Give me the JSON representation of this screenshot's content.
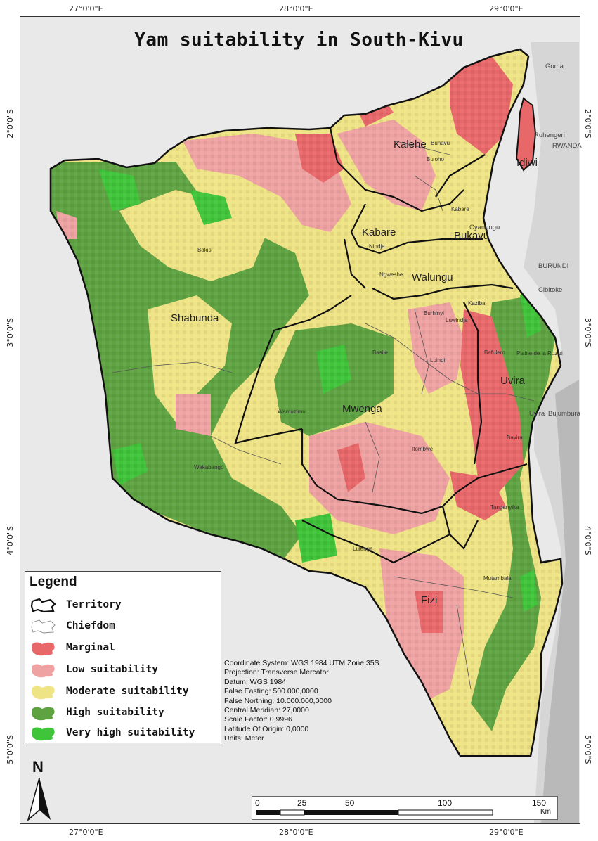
{
  "map": {
    "title": "Yam suitability in South-Kivu",
    "colors": {
      "marginal": "#e8686a",
      "low": "#efa2a2",
      "moderate": "#eee385",
      "high": "#5ea242",
      "very_high": "#3fc43a",
      "background": "#e9e9e9",
      "lake": "#b9b9b9",
      "border": "#111111"
    },
    "graticule": {
      "top": [
        "27°0'0\"E",
        "28°0'0\"E",
        "29°0'0\"E"
      ],
      "bottom": [
        "27°0'0\"E",
        "28°0'0\"E",
        "29°0'0\"E"
      ],
      "left": [
        "2°0'0\"S",
        "3°0'0\"S",
        "4°0'0\"S",
        "5°0'0\"S"
      ],
      "right": [
        "2°0'0\"S",
        "3°0'0\"S",
        "4°0'0\"S",
        "5°0'0\"S"
      ]
    },
    "territories": [
      "Kalehe",
      "Kabare",
      "Bukavu",
      "Walungu",
      "Shabunda",
      "Uvira",
      "Mwenga",
      "Fizi",
      "Idjwi"
    ],
    "chiefdoms": [
      "Buhavu",
      "Buloho",
      "Kabare",
      "Nindja",
      "Ngweshe",
      "Bakisi",
      "Burhinyi",
      "Luwindja",
      "Kaziba",
      "Basile",
      "Luindi",
      "Bafulero",
      "Plaine de la Ruzizi",
      "Wamuzimu",
      "Itombwe",
      "Bavira",
      "Wakabango",
      "Tanganyika",
      "Lulenge",
      "Mutambala"
    ],
    "other_places": [
      "Goma",
      "Cyangugu",
      "Uvira",
      "Cibitoke",
      "Ruhengeri",
      "Bujumbura",
      "BURUNDI",
      "RWANDA"
    ],
    "legend": {
      "title": "Legend",
      "items": [
        {
          "label": "Territory",
          "icon": "territory-outline"
        },
        {
          "label": "Chiefdom",
          "icon": "chiefdom-outline"
        },
        {
          "label": "Marginal",
          "icon": "marginal-swatch"
        },
        {
          "label": "Low suitability",
          "icon": "low-swatch"
        },
        {
          "label": "Moderate suitability",
          "icon": "moderate-swatch"
        },
        {
          "label": "High suitability",
          "icon": "high-swatch"
        },
        {
          "label": "Very high suitability",
          "icon": "very-high-swatch"
        }
      ]
    },
    "projection": [
      "Coordinate System: WGS 1984 UTM Zone 35S",
      "Projection: Transverse Mercator",
      "Datum: WGS 1984",
      "False Easting: 500.000,0000",
      "False Northing: 10.000.000,0000",
      "Central Meridian: 27,0000",
      "Scale Factor: 0,9996",
      "Latitude Of Origin: 0,0000",
      "Units: Meter"
    ],
    "north_label": "N",
    "scale": {
      "ticks": [
        "0",
        "25",
        "50",
        "100",
        "150"
      ],
      "unit": "Km"
    }
  }
}
